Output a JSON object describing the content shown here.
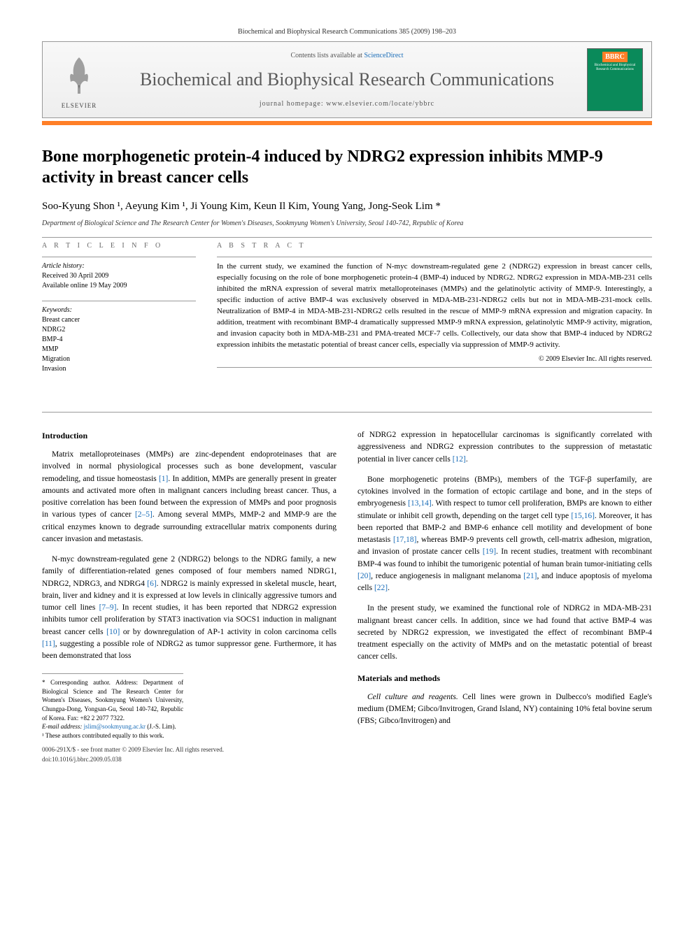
{
  "header": {
    "citation": "Biochemical and Biophysical Research Communications 385 (2009) 198–203"
  },
  "banner": {
    "publisher": "ELSEVIER",
    "contents_prefix": "Contents lists available at ",
    "contents_link": "ScienceDirect",
    "journal": "Biochemical and Biophysical Research Communications",
    "homepage_prefix": "journal homepage: ",
    "homepage_url": "www.elsevier.com/locate/ybbrc",
    "cover_badge": "BBRC",
    "cover_sub": "Biochemical and Biophysical Research Communications"
  },
  "article": {
    "title": "Bone morphogenetic protein-4 induced by NDRG2 expression inhibits MMP-9 activity in breast cancer cells",
    "authors": "Soo-Kyung Shon ¹, Aeyung Kim ¹, Ji Young Kim, Keun Il Kim, Young Yang, Jong-Seok Lim *",
    "affiliation": "Department of Biological Science and The Research Center for Women's Diseases, Sookmyung Women's University, Seoul 140-742, Republic of Korea"
  },
  "info": {
    "heading": "A R T I C L E   I N F O",
    "history_label": "Article history:",
    "received": "Received 30 April 2009",
    "online": "Available online 19 May 2009",
    "keywords_label": "Keywords:",
    "keywords": [
      "Breast cancer",
      "NDRG2",
      "BMP-4",
      "MMP",
      "Migration",
      "Invasion"
    ]
  },
  "abstract": {
    "heading": "A B S T R A C T",
    "text": "In the current study, we examined the function of N-myc downstream-regulated gene 2 (NDRG2) expression in breast cancer cells, especially focusing on the role of bone morphogenetic protein-4 (BMP-4) induced by NDRG2. NDRG2 expression in MDA-MB-231 cells inhibited the mRNA expression of several matrix metalloproteinases (MMPs) and the gelatinolytic activity of MMP-9. Interestingly, a specific induction of active BMP-4 was exclusively observed in MDA-MB-231-NDRG2 cells but not in MDA-MB-231-mock cells. Neutralization of BMP-4 in MDA-MB-231-NDRG2 cells resulted in the rescue of MMP-9 mRNA expression and migration capacity. In addition, treatment with recombinant BMP-4 dramatically suppressed MMP-9 mRNA expression, gelatinolytic MMP-9 activity, migration, and invasion capacity both in MDA-MB-231 and PMA-treated MCF-7 cells. Collectively, our data show that BMP-4 induced by NDRG2 expression inhibits the metastatic potential of breast cancer cells, especially via suppression of MMP-9 activity.",
    "copyright": "© 2009 Elsevier Inc. All rights reserved."
  },
  "body": {
    "intro_heading": "Introduction",
    "p1": "Matrix metalloproteinases (MMPs) are zinc-dependent endoproteinases that are involved in normal physiological processes such as bone development, vascular remodeling, and tissue homeostasis [1]. In addition, MMPs are generally present in greater amounts and activated more often in malignant cancers including breast cancer. Thus, a positive correlation has been found between the expression of MMPs and poor prognosis in various types of cancer [2–5]. Among several MMPs, MMP-2 and MMP-9 are the critical enzymes known to degrade surrounding extracellular matrix components during cancer invasion and metastasis.",
    "p2": "N-myc downstream-regulated gene 2 (NDRG2) belongs to the NDRG family, a new family of differentiation-related genes composed of four members named NDRG1, NDRG2, NDRG3, and NDRG4 [6]. NDRG2 is mainly expressed in skeletal muscle, heart, brain, liver and kidney and it is expressed at low levels in clinically aggressive tumors and tumor cell lines [7–9]. In recent studies, it has been reported that NDRG2 expression inhibits tumor cell proliferation by STAT3 inactivation via SOCS1 induction in malignant breast cancer cells [10] or by downregulation of AP-1 activity in colon carcinoma cells [11], suggesting a possible role of NDRG2 as tumor suppressor gene. Furthermore, it has been demonstrated that loss",
    "p3": "of NDRG2 expression in hepatocellular carcinomas is significantly correlated with aggressiveness and NDRG2 expression contributes to the suppression of metastatic potential in liver cancer cells [12].",
    "p4": "Bone morphogenetic proteins (BMPs), members of the TGF-β superfamily, are cytokines involved in the formation of ectopic cartilage and bone, and in the steps of embryogenesis [13,14]. With respect to tumor cell proliferation, BMPs are known to either stimulate or inhibit cell growth, depending on the target cell type [15,16]. Moreover, it has been reported that BMP-2 and BMP-6 enhance cell motility and development of bone metastasis [17,18], whereas BMP-9 prevents cell growth, cell-matrix adhesion, migration, and invasion of prostate cancer cells [19]. In recent studies, treatment with recombinant BMP-4 was found to inhibit the tumorigenic potential of human brain tumor-initiating cells [20], reduce angiogenesis in malignant melanoma [21], and induce apoptosis of myeloma cells [22].",
    "p5": "In the present study, we examined the functional role of NDRG2 in MDA-MB-231 malignant breast cancer cells. In addition, since we had found that active BMP-4 was secreted by NDRG2 expression, we investigated the effect of recombinant BMP-4 treatment especially on the activity of MMPs and on the metastatic potential of breast cancer cells.",
    "mm_heading": "Materials and methods",
    "p6": "Cell culture and reagents. Cell lines were grown in Dulbecco's modified Eagle's medium (DMEM; Gibco/Invitrogen, Grand Island, NY) containing 10% fetal bovine serum (FBS; Gibco/Invitrogen) and"
  },
  "footnotes": {
    "corr": "* Corresponding author. Address: Department of Biological Science and The Research Center for Women's Diseases, Sookmyung Women's University, Chungpa-Dong, Yongsan-Gu, Seoul 140-742, Republic of Korea. Fax: +82 2 2077 7322.",
    "email_label": "E-mail address: ",
    "email": "jslim@sookmyung.ac.kr",
    "email_suffix": " (J.-S. Lim).",
    "equal": "¹ These authors contributed equally to this work."
  },
  "footer": {
    "issn": "0006-291X/$ - see front matter © 2009 Elsevier Inc. All rights reserved.",
    "doi": "doi:10.1016/j.bbrc.2009.05.038"
  },
  "colors": {
    "link": "#1a6db8",
    "accent": "#ff7f27",
    "cover": "#0a8a5a"
  }
}
